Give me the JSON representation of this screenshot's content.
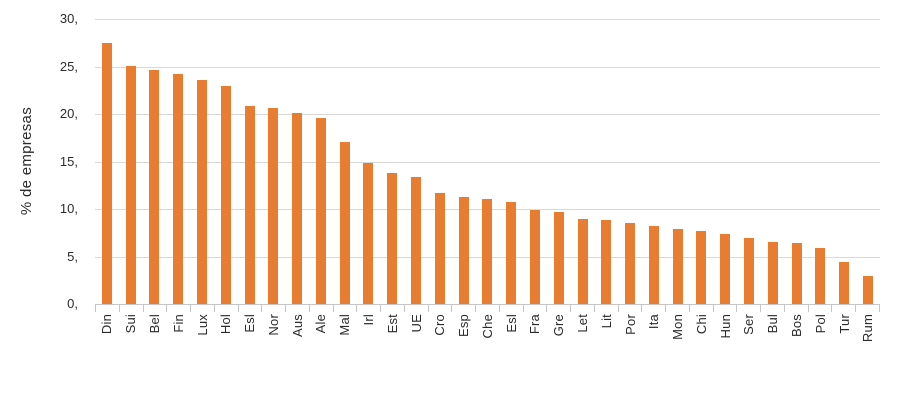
{
  "chart_data": {
    "type": "bar",
    "title": "",
    "xlabel": "",
    "ylabel": "% de empresas",
    "categories": [
      "Din",
      "Sui",
      "Bel",
      "Fin",
      "Lux",
      "Hol",
      "Esl",
      "Nor",
      "Aus",
      "Ale",
      "Mal",
      "Irl",
      "Est",
      "UE",
      "Cro",
      "Esp",
      "Che",
      "Esl",
      "Fra",
      "Gre",
      "Let",
      "Lit",
      "Por",
      "Ita",
      "Mon",
      "Chi",
      "Hun",
      "Ser",
      "Bul",
      "Bos",
      "Pol",
      "Tur",
      "Rum"
    ],
    "values": [
      27.5,
      25.1,
      24.6,
      24.2,
      23.6,
      23.0,
      20.8,
      20.6,
      20.1,
      19.6,
      17.1,
      14.8,
      13.8,
      13.4,
      11.7,
      11.3,
      11.1,
      10.7,
      9.9,
      9.7,
      8.9,
      8.8,
      8.5,
      8.2,
      7.9,
      7.7,
      7.4,
      6.9,
      6.5,
      6.4,
      5.9,
      4.4,
      3.0
    ],
    "y_ticks": [
      "30,",
      "25,",
      "20,",
      "15,",
      "10,",
      "5,",
      "0,"
    ],
    "y_tick_values": [
      30,
      25,
      20,
      15,
      10,
      5,
      0
    ],
    "ylim": [
      0,
      30
    ],
    "grid": "horizontal",
    "legend": "none",
    "colors": {
      "bar": "#E87D31",
      "gridline": "#D9D9D9",
      "axis": "#C6C6C6",
      "text": "#2B2B2B"
    }
  }
}
